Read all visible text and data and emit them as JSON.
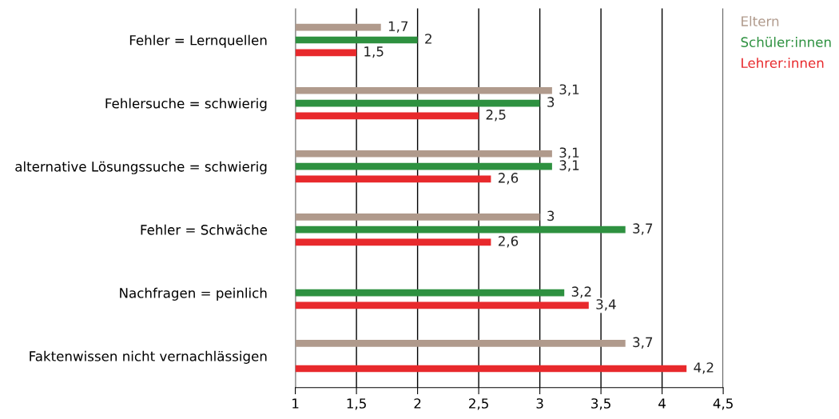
{
  "chart_data": {
    "type": "bar",
    "orientation": "horizontal",
    "categories": [
      "Fehler = Lernquellen",
      "Fehlersuche = schwierig",
      "alternative Lösungssuche = schwierig",
      "Fehler = Schwäche",
      "Nachfragen = peinlich",
      "Faktenwissen nicht vernachlässigen"
    ],
    "series": [
      {
        "name": "Eltern",
        "color": "#b09a8c",
        "values": [
          1.7,
          3.1,
          3.1,
          3,
          null,
          3.7
        ],
        "value_labels": [
          "1,7",
          "3,1",
          "3,1",
          "3",
          null,
          "3,7"
        ]
      },
      {
        "name": "Schüler:innen",
        "color": "#2e9140",
        "values": [
          2,
          3,
          3.1,
          3.7,
          3.2,
          null
        ],
        "value_labels": [
          "2",
          "3",
          "3,1",
          "3,7",
          "3,2",
          null
        ]
      },
      {
        "name": "Lehrer:innen",
        "color": "#e8292c",
        "values": [
          1.5,
          2.5,
          2.6,
          2.6,
          3.4,
          4.2
        ],
        "value_labels": [
          "1,5",
          "2,5",
          "2,6",
          "2,6",
          "3,4",
          "4,2"
        ]
      }
    ],
    "xlim": [
      1,
      4.5
    ],
    "xticks": [
      1,
      {
        "value": 1.5,
        "label": "1,5"
      },
      2,
      {
        "value": 2.5,
        "label": "2,5"
      },
      3,
      {
        "value": 3.5,
        "label": "3,5"
      },
      4,
      {
        "value": 4.5,
        "label": "4,5"
      }
    ],
    "grid": "x",
    "legend": "right"
  }
}
